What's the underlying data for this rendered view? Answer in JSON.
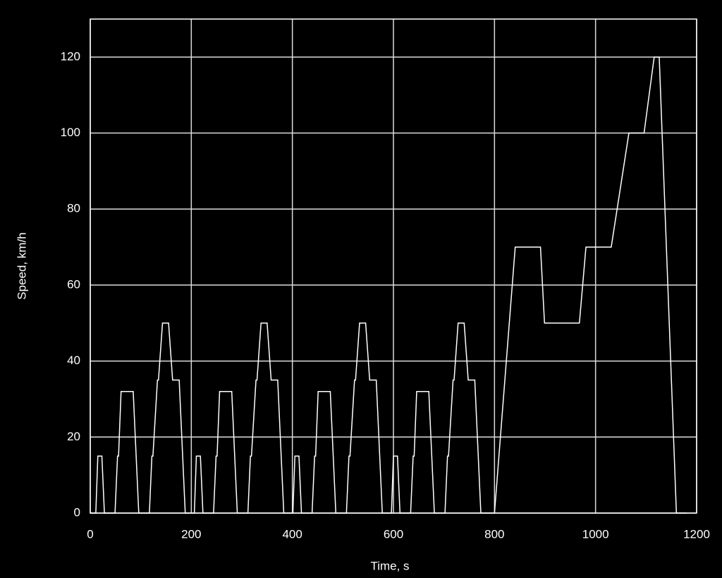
{
  "chart_data": {
    "type": "line",
    "xlabel": "Time, s",
    "ylabel": "Speed, km/h",
    "x": [
      0,
      11,
      15,
      23,
      28,
      49,
      54,
      56,
      61,
      85,
      96,
      117,
      122,
      124,
      133,
      135,
      143,
      155,
      163,
      176,
      188,
      195,
      206,
      210,
      218,
      223,
      244,
      249,
      251,
      256,
      280,
      291,
      312,
      317,
      319,
      328,
      330,
      338,
      350,
      358,
      371,
      383,
      390,
      401,
      405,
      413,
      418,
      439,
      444,
      446,
      451,
      475,
      486,
      507,
      512,
      514,
      523,
      525,
      533,
      545,
      553,
      566,
      578,
      585,
      596,
      600,
      608,
      613,
      634,
      639,
      641,
      646,
      670,
      681,
      702,
      707,
      709,
      718,
      720,
      728,
      740,
      748,
      761,
      773,
      780,
      800,
      841,
      891,
      899,
      968,
      981,
      1031,
      1066,
      1096,
      1116,
      1126,
      1160,
      1180
    ],
    "values": [
      0,
      0,
      15,
      15,
      0,
      0,
      15,
      15,
      32,
      32,
      0,
      0,
      15,
      15,
      35,
      35,
      50,
      50,
      35,
      35,
      0,
      0,
      0,
      15,
      15,
      0,
      0,
      15,
      15,
      32,
      32,
      0,
      0,
      15,
      15,
      35,
      35,
      50,
      50,
      35,
      35,
      0,
      0,
      0,
      15,
      15,
      0,
      0,
      15,
      15,
      32,
      32,
      0,
      0,
      15,
      15,
      35,
      35,
      50,
      50,
      35,
      35,
      0,
      0,
      0,
      15,
      15,
      0,
      0,
      15,
      15,
      32,
      32,
      0,
      0,
      15,
      15,
      35,
      35,
      50,
      50,
      35,
      35,
      0,
      0,
      0,
      70,
      70,
      50,
      50,
      70,
      70,
      100,
      100,
      120,
      120,
      0,
      0
    ],
    "color": "#ffffff",
    "xlim": [
      0,
      1200
    ],
    "xticks": [
      0,
      200,
      400,
      600,
      800,
      1000,
      1200
    ],
    "ylim": [
      0,
      130
    ],
    "yticks": [
      0,
      20,
      40,
      60,
      80,
      100,
      120
    ],
    "grid": true
  }
}
